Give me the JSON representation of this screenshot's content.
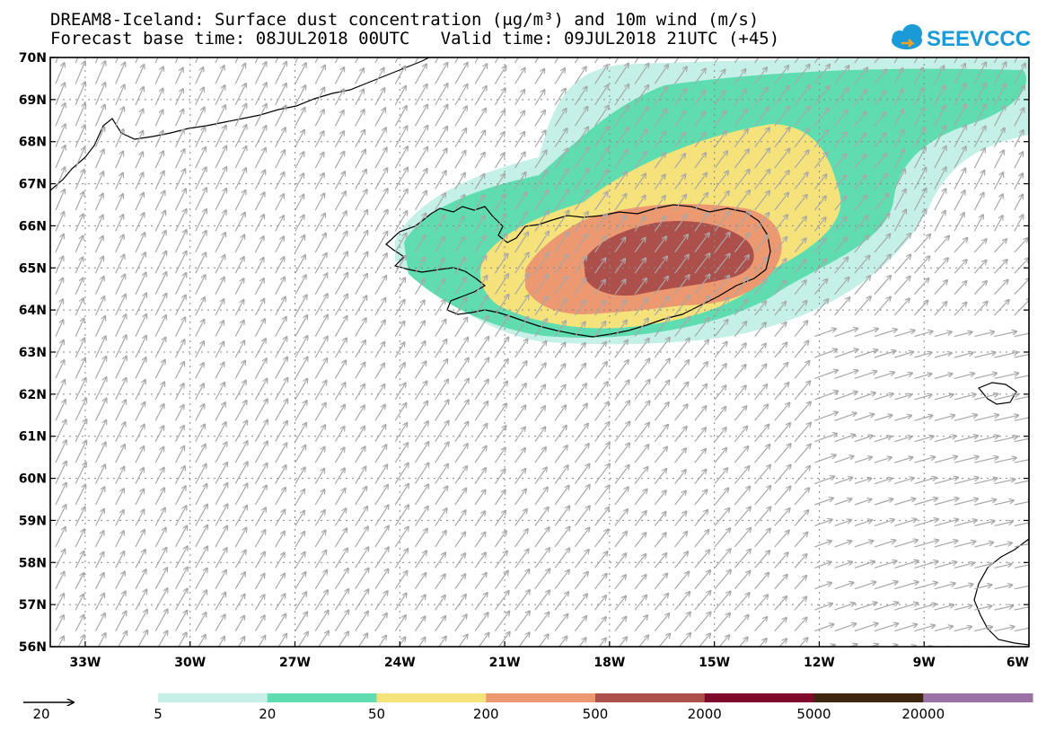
{
  "title": {
    "line1": "DREAM8-Iceland: Surface dust concentration (μg/m³) and 10m wind (m/s)",
    "line2": "Forecast base time: 08JUL2018 00UTC   Valid time: 09JUL2018 21UTC (+45)"
  },
  "logo": {
    "text": "SEEVCCC",
    "color": "#1a9ad6"
  },
  "axes": {
    "lat_labels": [
      "70N",
      "69N",
      "68N",
      "67N",
      "66N",
      "65N",
      "64N",
      "63N",
      "62N",
      "61N",
      "60N",
      "59N",
      "58N",
      "57N",
      "56N"
    ],
    "lat_values": [
      70,
      69,
      68,
      67,
      66,
      65,
      64,
      63,
      62,
      61,
      60,
      59,
      58,
      57,
      56
    ],
    "lon_labels": [
      "33W",
      "30W",
      "27W",
      "24W",
      "21W",
      "18W",
      "15W",
      "12W",
      "9W",
      "6W"
    ],
    "lon_values": [
      -33,
      -30,
      -27,
      -24,
      -21,
      -18,
      -15,
      -12,
      -9,
      -6
    ],
    "lon_range": [
      -34.0,
      -6.0
    ],
    "lat_range": [
      56,
      70
    ]
  },
  "wind": {
    "reference_label": "20",
    "reference_speed": 20,
    "arrow_color": "#a8a8a8"
  },
  "legend": {
    "labels": [
      "5",
      "20",
      "50",
      "200",
      "500",
      "2000",
      "5000",
      "20000"
    ],
    "colors": [
      "#c5f0e8",
      "#5fdcb0",
      "#f6e27a",
      "#ec9870",
      "#ad4f4b",
      "#7e0b2c",
      "#3e2611",
      "#9b72a6"
    ]
  }
}
